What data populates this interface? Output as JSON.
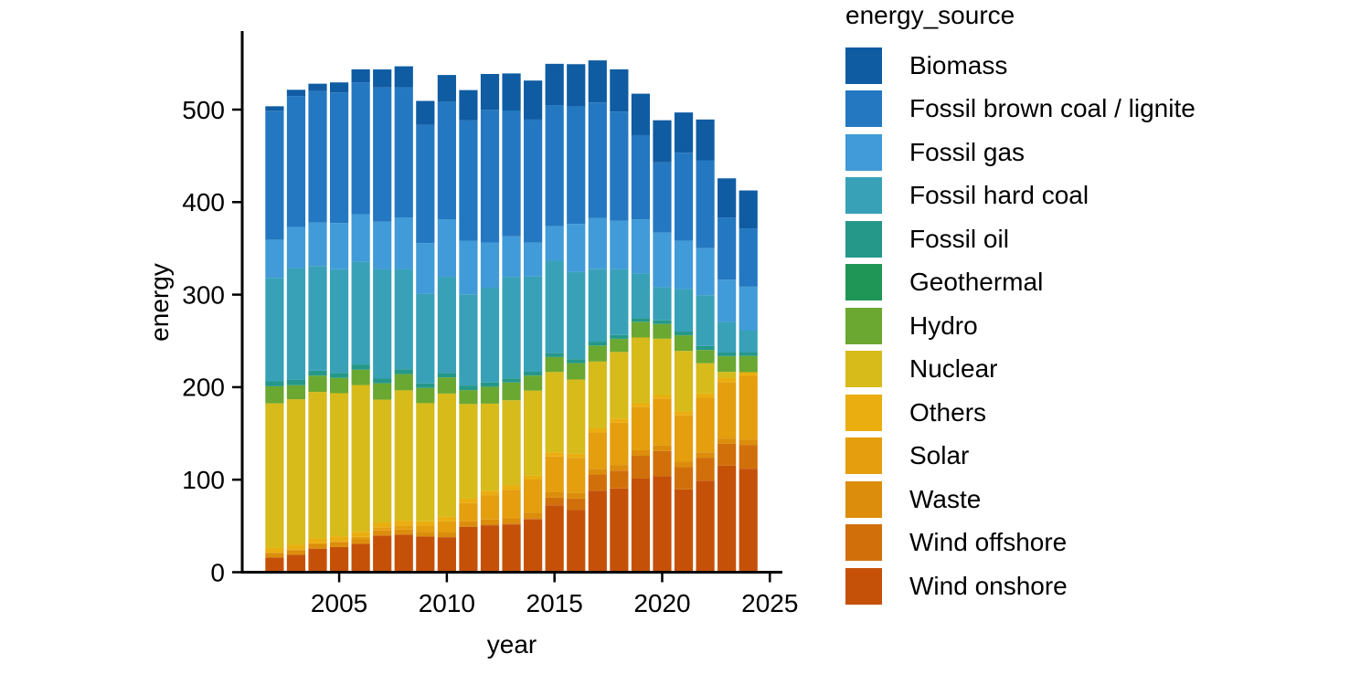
{
  "figure": {
    "background": "#ffffff",
    "text_color": "#000000",
    "axis_line_color": "#000000"
  },
  "axes": {
    "x_label": "year",
    "y_label": "energy",
    "x_tick_labels": [
      "2005",
      "2010",
      "2015",
      "2020",
      "2025"
    ],
    "y_tick_labels": [
      "0",
      "100",
      "200",
      "300",
      "400",
      "500"
    ]
  },
  "legend": {
    "title": "energy_source",
    "position": "right",
    "items": [
      {
        "label": "Biomass",
        "color": "#0F5CA3"
      },
      {
        "label": "Fossil brown coal / lignite",
        "color": "#2478C1"
      },
      {
        "label": "Fossil gas",
        "color": "#419BD8"
      },
      {
        "label": "Fossil hard coal",
        "color": "#38A1B8"
      },
      {
        "label": "Fossil oil",
        "color": "#259889"
      },
      {
        "label": "Geothermal",
        "color": "#1F9556"
      },
      {
        "label": "Hydro",
        "color": "#6AA831"
      },
      {
        "label": "Nuclear",
        "color": "#D6BB1B"
      },
      {
        "label": "Others",
        "color": "#EAAE10"
      },
      {
        "label": "Solar",
        "color": "#E49E0E"
      },
      {
        "label": "Waste",
        "color": "#DC8D0B"
      },
      {
        "label": "Wind offshore",
        "color": "#D1700A"
      },
      {
        "label": "Wind onshore",
        "color": "#C55108"
      }
    ]
  },
  "chart_data": {
    "type": "bar",
    "stacked": true,
    "title": "",
    "xlabel": "year",
    "ylabel": "energy",
    "x": [
      2002,
      2003,
      2004,
      2005,
      2006,
      2007,
      2008,
      2009,
      2010,
      2011,
      2012,
      2013,
      2014,
      2015,
      2016,
      2017,
      2018,
      2019,
      2020,
      2021,
      2022,
      2023,
      2024
    ],
    "x_ticks": [
      2005,
      2010,
      2015,
      2020,
      2025
    ],
    "y_ticks": [
      0,
      100,
      200,
      300,
      400,
      500
    ],
    "ylim": [
      0,
      585
    ],
    "grid": false,
    "legend_position": "right",
    "legend_title": "energy_source",
    "stack_order_bottom_to_top": [
      "Wind onshore",
      "Wind offshore",
      "Waste",
      "Solar",
      "Others",
      "Nuclear",
      "Hydro",
      "Geothermal",
      "Fossil oil",
      "Fossil hard coal",
      "Fossil gas",
      "Fossil brown coal / lignite",
      "Biomass"
    ],
    "series": [
      {
        "name": "Biomass",
        "color": "#0F5CA3",
        "values": [
          4.9,
          6.7,
          7.9,
          10.8,
          14.0,
          19.5,
          22.7,
          25.8,
          28.9,
          32.8,
          38.6,
          40.1,
          42.2,
          44.6,
          45.6,
          45.5,
          45.7,
          44.8,
          45.5,
          43.5,
          44.1,
          42.5,
          41.0
        ]
      },
      {
        "name": "Fossil brown coal / lignite",
        "color": "#2478C1",
        "values": [
          139.3,
          141.5,
          142.1,
          141.2,
          142.5,
          145.1,
          140.6,
          128.0,
          127.0,
          130.0,
          143.5,
          136.0,
          133.0,
          131.0,
          127.0,
          125.0,
          118.0,
          91.0,
          76.0,
          95.0,
          95.0,
          67.0,
          63.0
        ]
      },
      {
        "name": "Fossil gas",
        "color": "#419BD8",
        "values": [
          41.3,
          44.5,
          47.0,
          49.9,
          51.5,
          51.5,
          55.7,
          54.9,
          62.2,
          58.0,
          48.9,
          43.8,
          36.7,
          37.3,
          52.1,
          54.7,
          52.2,
          58.5,
          59.1,
          52.5,
          50.9,
          45.8,
          47.0
        ]
      },
      {
        "name": "Fossil hard coal",
        "color": "#38A1B8",
        "values": [
          111.8,
          120.8,
          113.0,
          112.0,
          111.0,
          118.0,
          108.5,
          96.6,
          104.0,
          98.5,
          102.4,
          109.7,
          102.8,
          99.8,
          94.1,
          78.8,
          71.2,
          48.4,
          35.7,
          45.8,
          54.8,
          33.0,
          24.2
        ]
      },
      {
        "name": "Fossil oil",
        "color": "#259889",
        "values": [
          5.3,
          5.8,
          5.5,
          5.4,
          5.6,
          5.1,
          5.2,
          4.9,
          4.7,
          4.9,
          4.6,
          4.4,
          4.1,
          4.2,
          4.3,
          4.2,
          4.1,
          3.9,
          3.8,
          3.9,
          4.2,
          3.8,
          3.6
        ]
      },
      {
        "name": "Geothermal",
        "color": "#1F9556",
        "values": [
          0,
          0,
          0,
          0,
          0,
          0,
          0,
          0,
          0,
          0.1,
          0.1,
          0.1,
          0.1,
          0.1,
          0.2,
          0.2,
          0.2,
          0.2,
          0.2,
          0.2,
          0.2,
          0.2,
          0.2
        ]
      },
      {
        "name": "Hydro",
        "color": "#6AA831",
        "values": [
          18.5,
          15.1,
          17.6,
          16.6,
          16.6,
          17.7,
          17.5,
          16.5,
          17.5,
          15.0,
          18.2,
          19.1,
          16.2,
          16.1,
          17.5,
          17.1,
          14.0,
          16.7,
          15.8,
          16.8,
          14.2,
          16.9,
          17.4
        ]
      },
      {
        "name": "Nuclear",
        "color": "#D6BB1B",
        "values": [
          156.3,
          157.4,
          158.4,
          154.6,
          158.7,
          133.2,
          140.9,
          127.7,
          133.0,
          102.3,
          94.2,
          92.1,
          91.8,
          86.8,
          80.1,
          72.2,
          71.9,
          71.1,
          60.9,
          65.4,
          32.8,
          6.7,
          0
        ]
      },
      {
        "name": "Others",
        "color": "#EAAE10",
        "values": [
          5.2,
          5.3,
          5.3,
          5.2,
          5.4,
          5.1,
          5.2,
          4.6,
          5.0,
          4.8,
          4.7,
          4.6,
          4.3,
          4.5,
          4.6,
          4.4,
          4.5,
          4.3,
          4.1,
          4.3,
          4.5,
          4.2,
          4.0
        ]
      },
      {
        "name": "Solar",
        "color": "#E49E0E",
        "values": [
          0.2,
          0.3,
          0.6,
          1.3,
          2.2,
          3.1,
          4.4,
          6.6,
          11.7,
          19.6,
          26.4,
          31.0,
          36.1,
          38.7,
          38.1,
          39.4,
          45.8,
          46.5,
          50.6,
          50.0,
          59.0,
          61.1,
          69.0
        ]
      },
      {
        "name": "Waste",
        "color": "#DC8D0B",
        "values": [
          4.9,
          5.1,
          5.1,
          5.2,
          5.3,
          5.4,
          5.5,
          5.2,
          5.4,
          5.6,
          5.5,
          5.6,
          5.7,
          5.8,
          5.9,
          6.0,
          6.1,
          5.9,
          5.8,
          5.9,
          5.8,
          5.7,
          5.6
        ]
      },
      {
        "name": "Wind offshore",
        "color": "#D1700A",
        "values": [
          0,
          0,
          0,
          0,
          0,
          0,
          0,
          0,
          0.2,
          0.6,
          0.7,
          0.9,
          1.4,
          8.3,
          12.1,
          17.7,
          19.3,
          24.7,
          27.3,
          24.1,
          24.8,
          23.5,
          25.7
        ]
      },
      {
        "name": "Wind onshore",
        "color": "#C55108",
        "values": [
          15.9,
          18.9,
          25.5,
          27.2,
          30.7,
          39.7,
          40.6,
          38.6,
          37.8,
          48.9,
          50.7,
          51.7,
          57.0,
          72.3,
          67.5,
          88.0,
          90.5,
          101.2,
          103.7,
          89.5,
          99.0,
          115.3,
          111.9
        ]
      }
    ]
  }
}
